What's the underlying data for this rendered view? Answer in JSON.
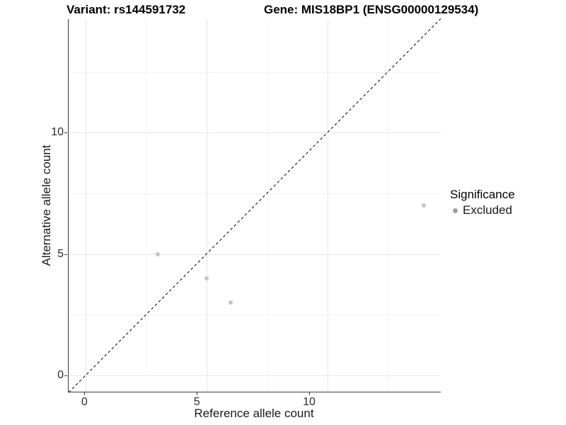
{
  "header": {
    "title_left": "Variant: rs144591732",
    "title_right": "Gene: MIS18BP1 (ENSG00000129534)"
  },
  "chart_data": {
    "type": "scatter",
    "title_left": "Variant: rs144591732",
    "title_right": "Gene: MIS18BP1 (ENSG00000129534)",
    "xlabel": "Reference allele count",
    "ylabel": "Alternative allele count",
    "x_ticks": [
      0,
      5,
      10
    ],
    "x_tick_labels": [
      "0",
      "5",
      "10"
    ],
    "y_ticks": [
      0,
      5,
      10
    ],
    "y_tick_labels": [
      "0",
      "5",
      "10"
    ],
    "x_minor_ticks": [
      2.5,
      7.5,
      12.5
    ],
    "y_minor_ticks": [
      2.5,
      7.5,
      12.5
    ],
    "xlim": [
      -0.75,
      15.75
    ],
    "ylim": [
      -0.7,
      14.7
    ],
    "grid": true,
    "series": [
      {
        "name": "Excluded",
        "color": "#c5c5c5",
        "points": [
          [
            3,
            5
          ],
          [
            5,
            4
          ],
          [
            6,
            3
          ],
          [
            14,
            7
          ]
        ]
      }
    ],
    "reference_line": {
      "type": "identity",
      "intercept": 0,
      "slope": 1,
      "style": "dashed",
      "color": "#141414"
    },
    "legend": {
      "title": "Significance",
      "position": "right",
      "entries": [
        {
          "label": "Excluded",
          "color": "#9e9e9e"
        }
      ]
    }
  },
  "colors": {
    "grid_major": "#e7e7e7",
    "grid_minor": "#f4f4f4",
    "axis": "#3a3a3a",
    "point": "#c5c5c5",
    "legend_dot": "#9e9e9e"
  }
}
